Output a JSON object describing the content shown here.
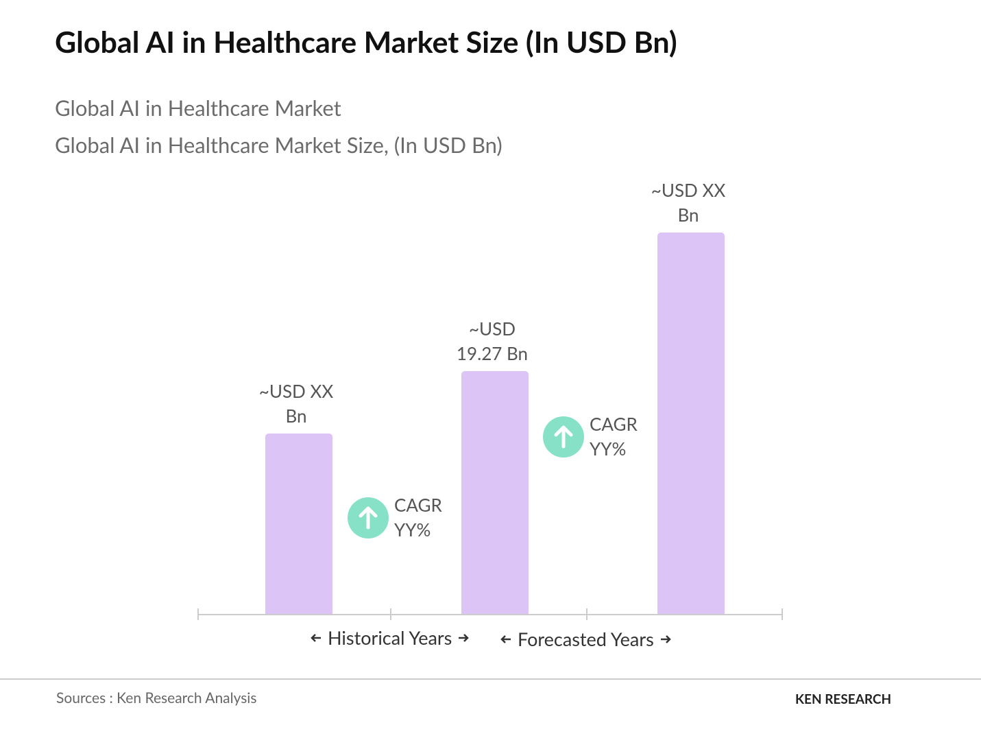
{
  "chart_data": {
    "type": "bar",
    "title": "Global AI in Healthcare Market Size (In USD Bn)",
    "subtitle": [
      "Global AI in Healthcare Market",
      "Global AI in Healthcare Market Size, (In USD Bn)"
    ],
    "categories": [
      null,
      null,
      null
    ],
    "values": [
      14.32,
      19.27,
      30.27
    ],
    "value_labels": [
      "~USD XX Bn",
      "~USD 19.27 Bn",
      "~USD XX Bn"
    ],
    "color": "#dcc4f6",
    "annotations": [
      "CAGR YY%",
      "CAGR YY%"
    ],
    "periods": [
      "Historical Years",
      "Forecasted Years"
    ],
    "source": "Sources : Ken Research Analysis",
    "logo": "KEN RESEARCH"
  }
}
